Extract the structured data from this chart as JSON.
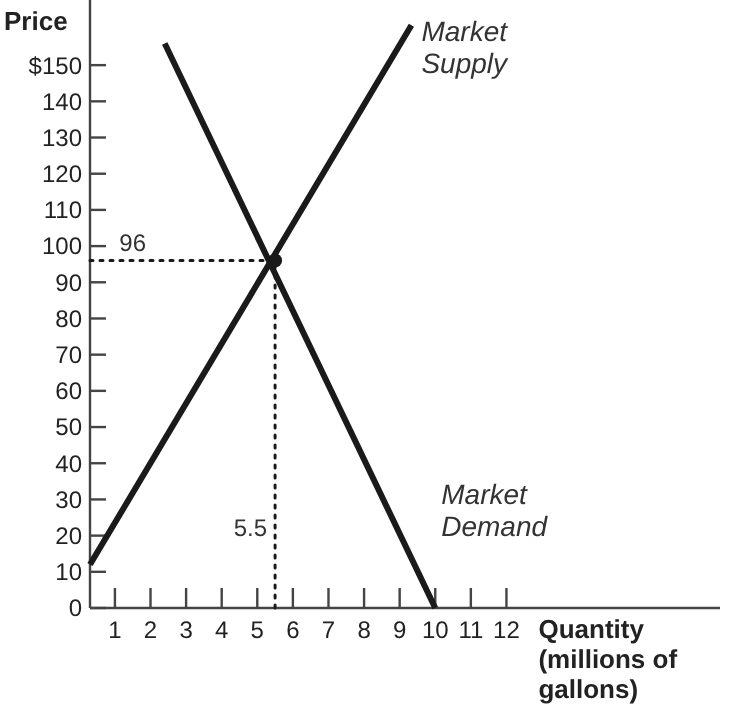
{
  "chart_data": {
    "type": "line",
    "xlabel": "Quantity (millions of gallons)",
    "ylabel": "Price",
    "xlim": [
      0.3,
      18
    ],
    "ylim": [
      0,
      168
    ],
    "xticks": [
      1,
      2,
      3,
      4,
      5,
      6,
      7,
      8,
      9,
      10,
      11,
      12
    ],
    "yticks": [
      0,
      10,
      20,
      30,
      40,
      50,
      60,
      70,
      80,
      90,
      100,
      110,
      120,
      130,
      140,
      {
        "value": 150,
        "label": "$150"
      }
    ],
    "grid": false,
    "marker": "none",
    "series": [
      {
        "name": "Market Supply",
        "color": "#1a1a1a",
        "x": [
          0.3,
          9.33
        ],
        "values": [
          12,
          161
        ]
      },
      {
        "name": "Market Demand",
        "color": "#1a1a1a",
        "x": [
          2.4,
          10
        ],
        "values": [
          156,
          0
        ]
      },
      {
        "type": "line",
        "line_style": "dotted",
        "color": "#1a1a1a",
        "x": [
          0.3,
          5.5
        ],
        "values": [
          96,
          96
        ]
      },
      {
        "type": "line",
        "line_style": "dotted",
        "color": "#1a1a1a",
        "x": [
          5.5,
          5.5
        ],
        "values": [
          0,
          96
        ]
      },
      {
        "type": "scatter",
        "marker": "circle",
        "color": "#1a1a1a",
        "x": [
          5.5
        ],
        "values": [
          96
        ]
      }
    ],
    "annotations": [
      {
        "text": "96",
        "x": 1.5,
        "y": 96
      },
      {
        "text": "5.5",
        "x": 5.5,
        "y": 20
      }
    ]
  }
}
